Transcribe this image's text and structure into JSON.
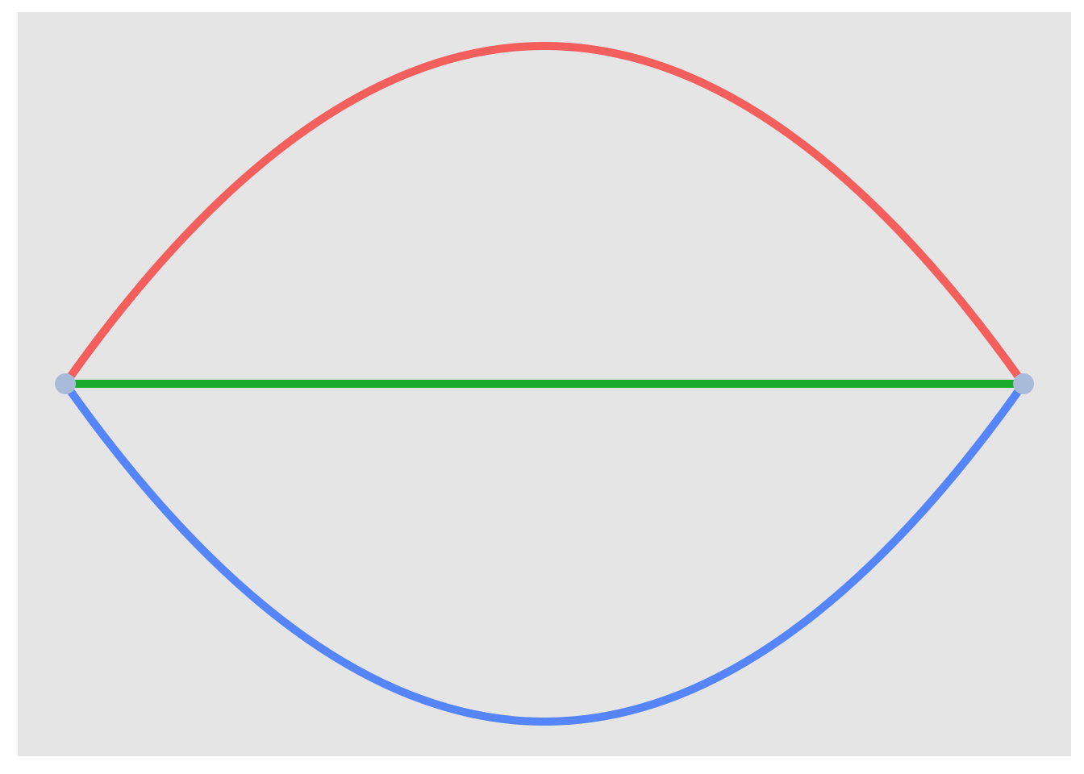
{
  "diagram": {
    "type": "multigraph",
    "background_color": "#e5e5e5",
    "node_color": "#a8bbd8",
    "nodes": [
      {
        "id": "left-node"
      },
      {
        "id": "right-node"
      }
    ],
    "edges": [
      {
        "id": "edge-top",
        "from": "left-node",
        "to": "right-node",
        "shape": "arc-up",
        "color": "#f25f5c"
      },
      {
        "id": "edge-middle",
        "from": "left-node",
        "to": "right-node",
        "shape": "straight",
        "color": "#19aa2e"
      },
      {
        "id": "edge-bottom",
        "from": "left-node",
        "to": "right-node",
        "shape": "arc-down",
        "color": "#5585f8"
      }
    ]
  }
}
